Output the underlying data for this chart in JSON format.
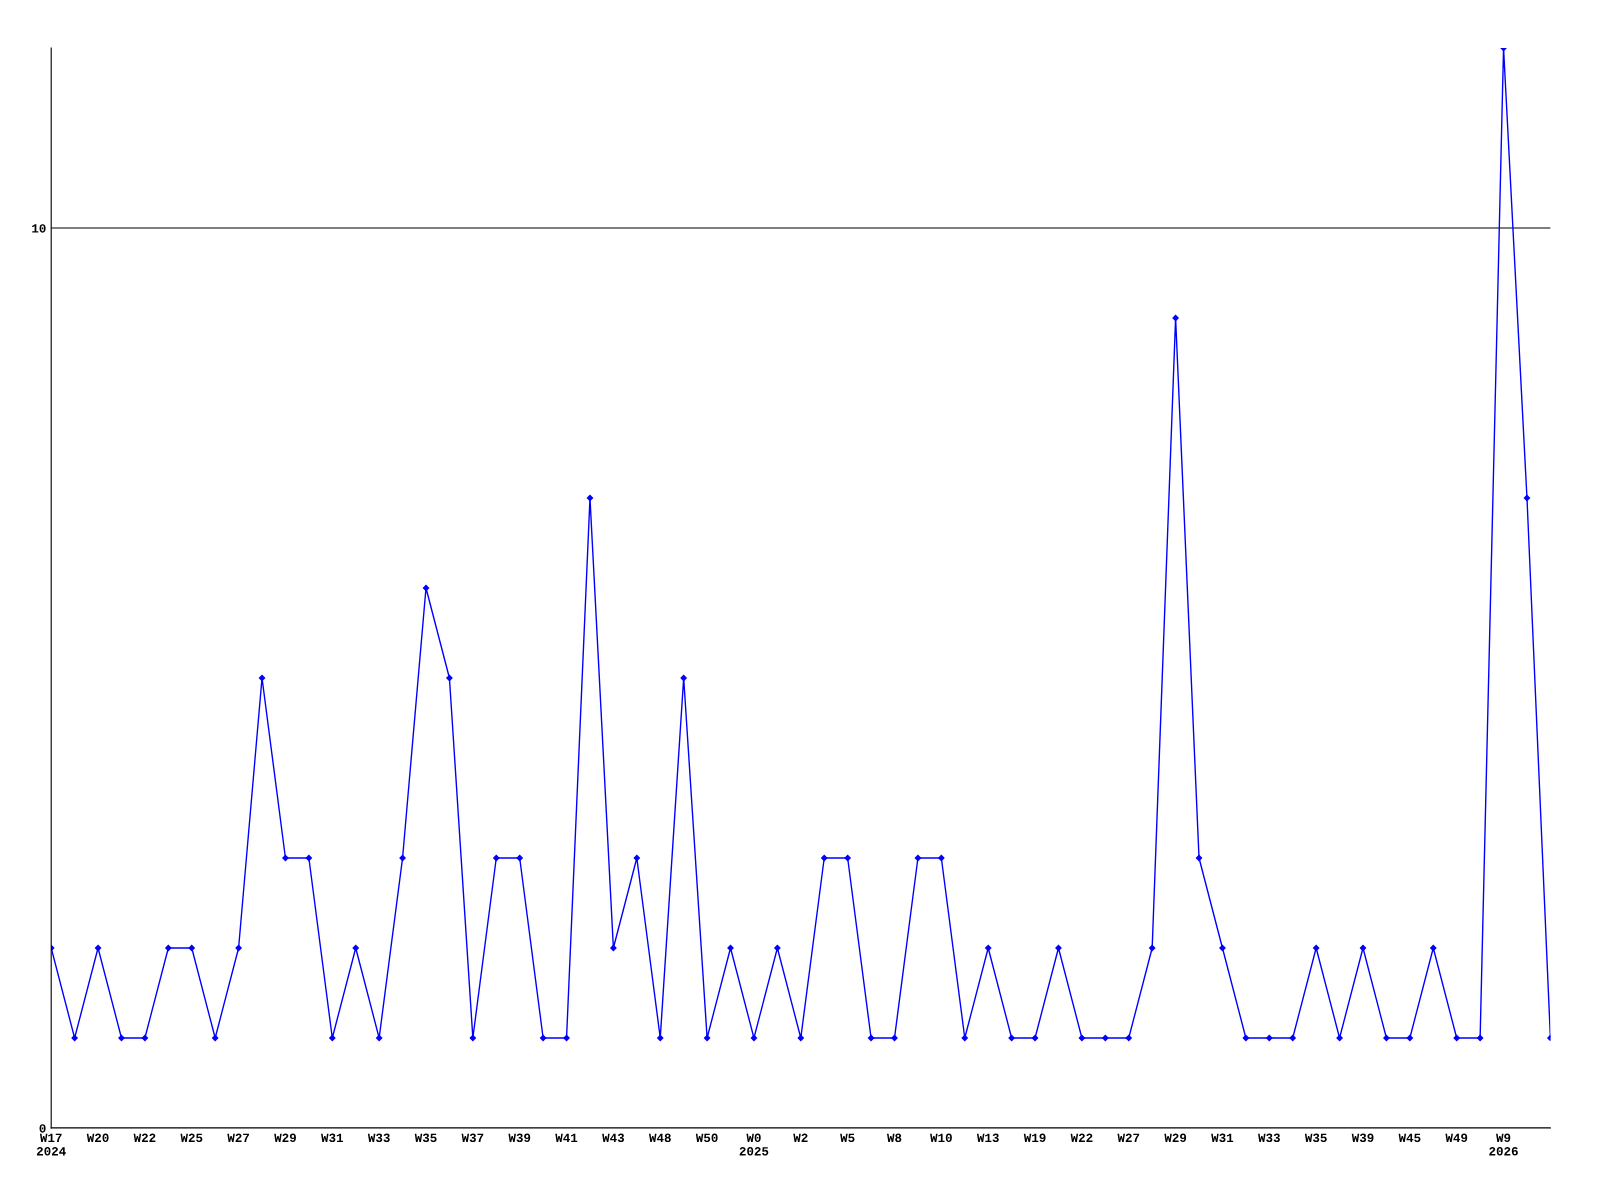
{
  "chart_data": {
    "type": "line",
    "categories": [
      "W17\n2024",
      null,
      "W20",
      null,
      "W22",
      null,
      "W25",
      null,
      "W27",
      null,
      "W29",
      null,
      "W31",
      null,
      "W33",
      null,
      "W35",
      null,
      "W37",
      null,
      "W39",
      null,
      "W41",
      null,
      "W43",
      null,
      "W48",
      null,
      "W50",
      null,
      "W0\n2025",
      null,
      "W2",
      null,
      "W5",
      null,
      "W8",
      null,
      "W10",
      null,
      "W13",
      null,
      "W19",
      null,
      "W22",
      null,
      "W27",
      null,
      "W29",
      null,
      "W31",
      null,
      "W33",
      null,
      "W35",
      null,
      "W39",
      null,
      "W45",
      null,
      "W49",
      null,
      "W9\n2026",
      null,
      null
    ],
    "series": [
      {
        "color": "#0000ff",
        "values": [
          2,
          1,
          2,
          1,
          1,
          2,
          2,
          1,
          2,
          5,
          3,
          3,
          1,
          2,
          1,
          3,
          6,
          5,
          1,
          3,
          3,
          1,
          1,
          7,
          2,
          3,
          1,
          5,
          1,
          2,
          1,
          2,
          1,
          3,
          3,
          1,
          1,
          3,
          3,
          1,
          2,
          1,
          1,
          2,
          1,
          1,
          1,
          2,
          9,
          3,
          2,
          1,
          1,
          1,
          2,
          1,
          2,
          1,
          1,
          2,
          1,
          1,
          12,
          7,
          1
        ]
      }
    ],
    "ylim": [
      0,
      12
    ],
    "yticks": [
      0,
      10
    ],
    "grid": "y",
    "marker": "diamond",
    "line_style": "solid"
  }
}
